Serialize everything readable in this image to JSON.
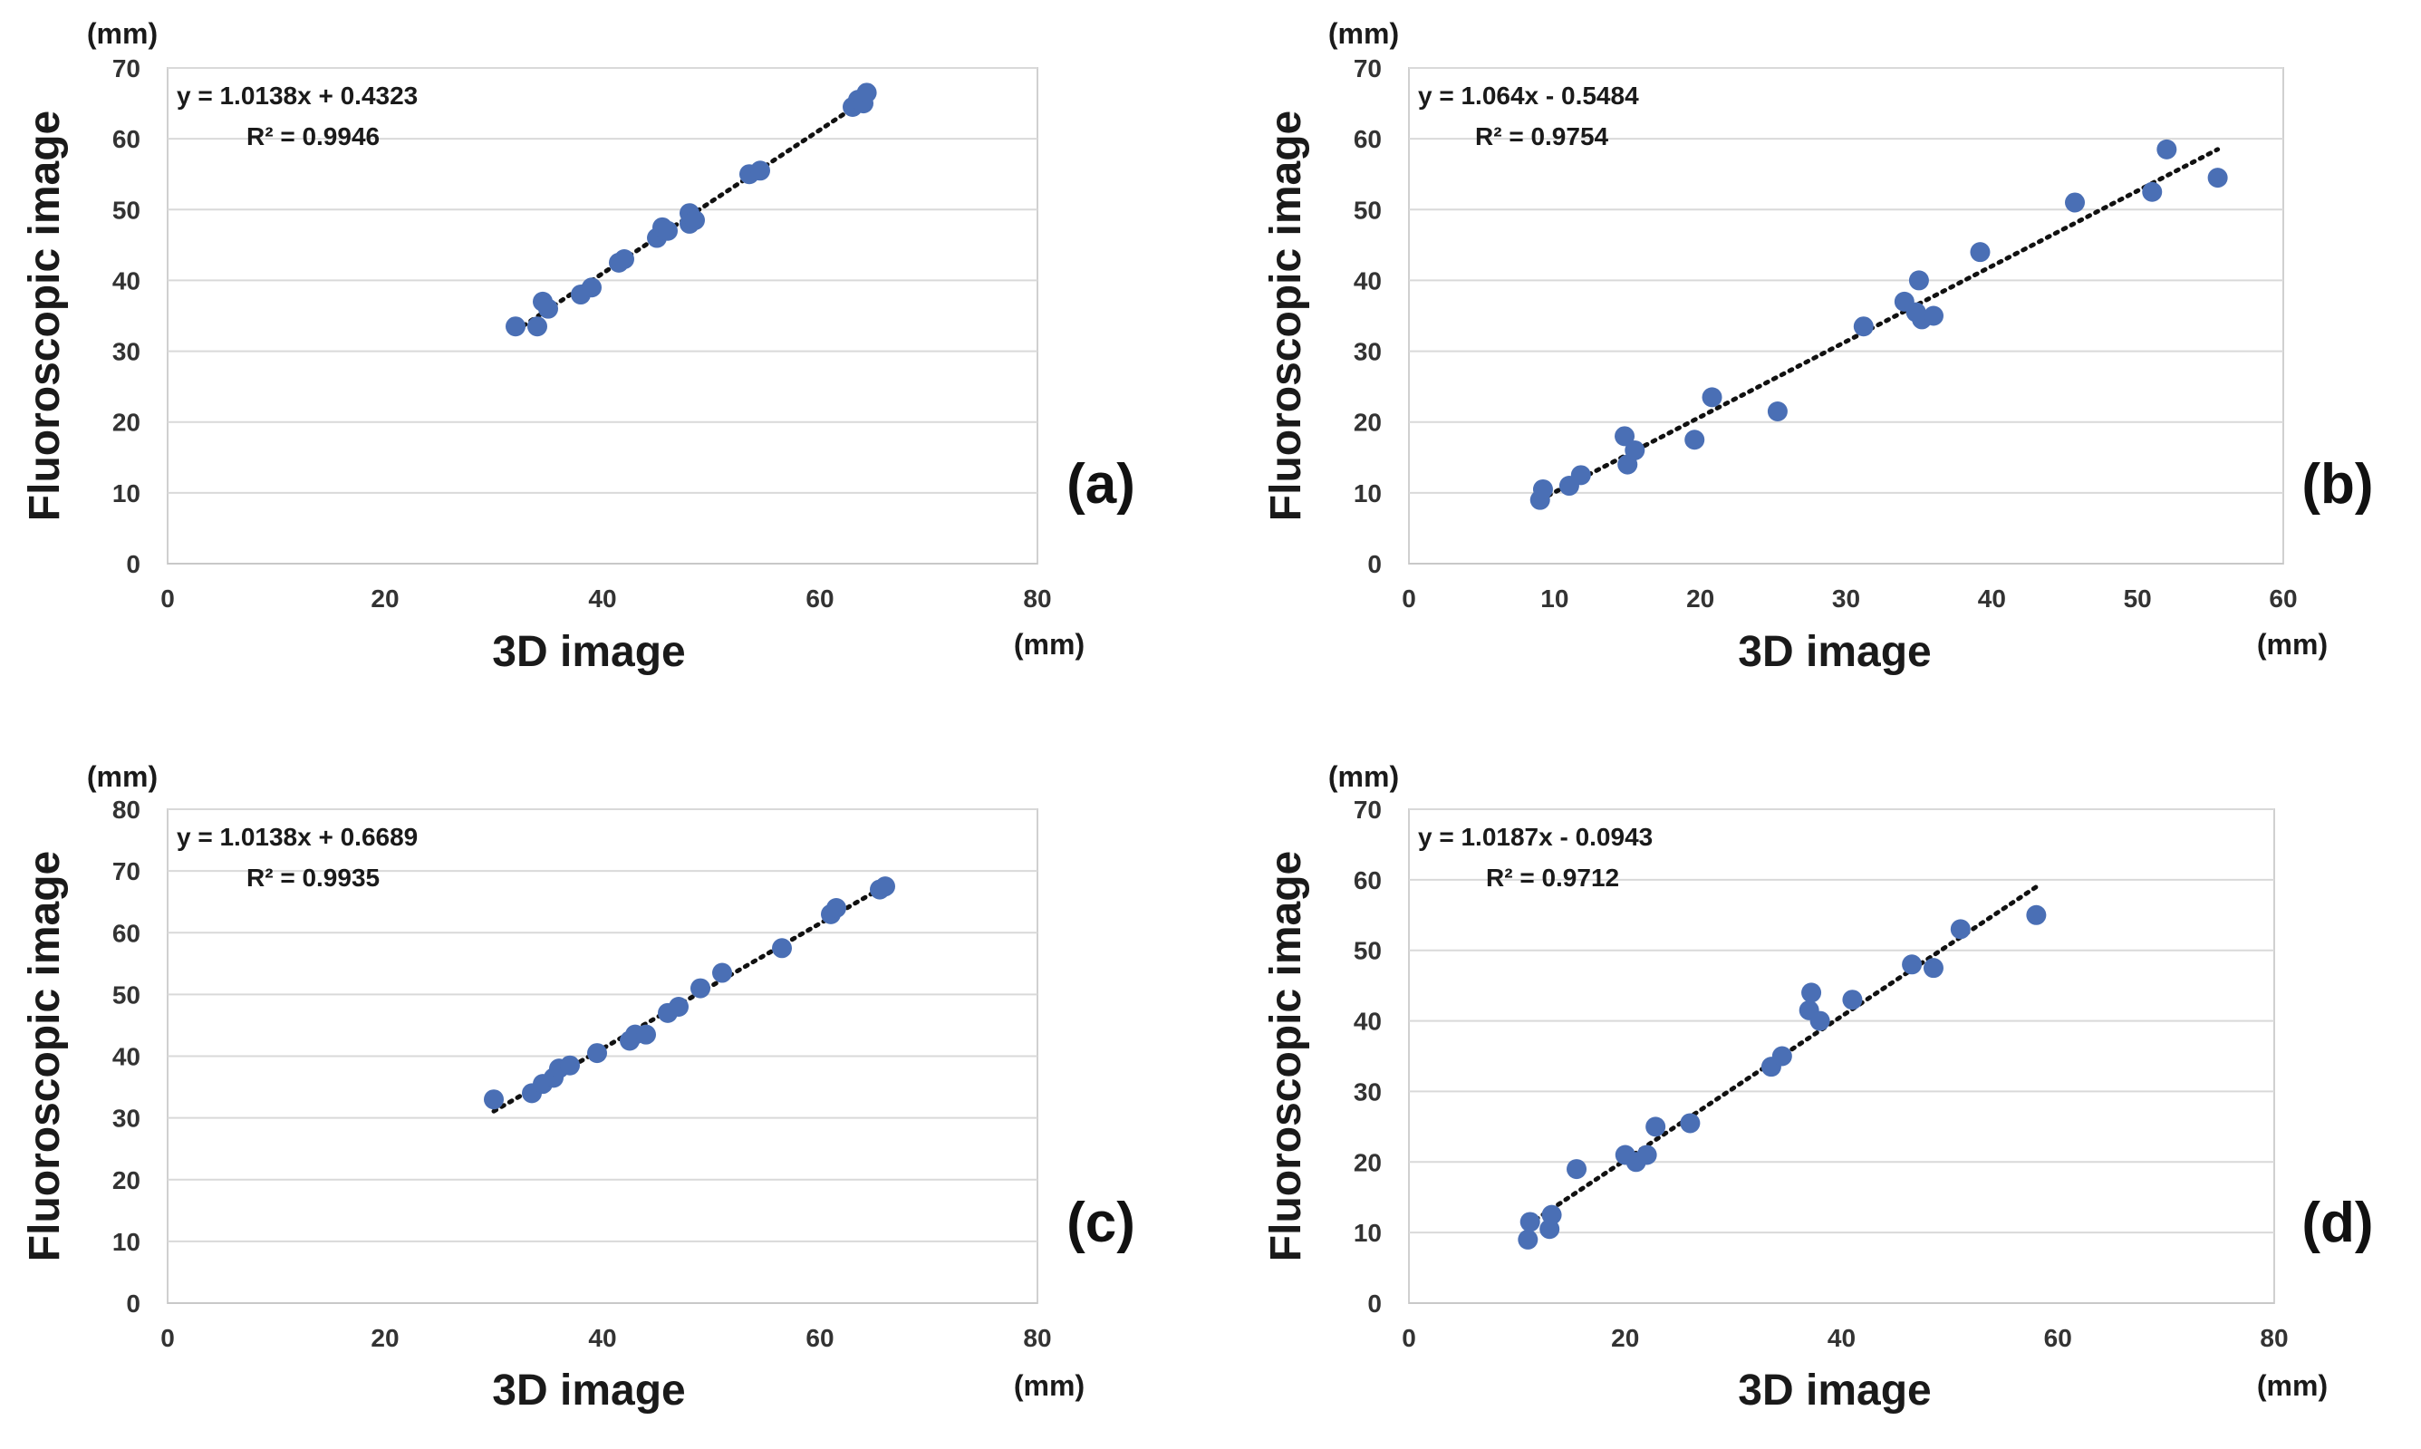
{
  "colors": {
    "point": "#4a6fb5",
    "trend": "#111111",
    "grid": "#d9d9d9",
    "frame": "#d0d0d0"
  },
  "chart_data": [
    {
      "type": "scatter",
      "panel_label": "(a)",
      "xlabel": "3D image",
      "ylabel": "Fluoroscopic image",
      "x_unit": "(mm)",
      "y_unit": "(mm)",
      "xlim": [
        0,
        80
      ],
      "ylim": [
        0,
        70
      ],
      "xticks": [
        "0",
        "20",
        "40",
        "60",
        "80"
      ],
      "yticks": [
        "0",
        "10",
        "20",
        "30",
        "40",
        "50",
        "60",
        "70"
      ],
      "grid": "horizontal",
      "equation": "y = 1.0138x + 0.4323",
      "r_squared": "R² = 0.9946",
      "trend": {
        "slope": 1.0138,
        "intercept": 0.4323,
        "x_range": [
          32,
          64.5
        ]
      },
      "series": [
        {
          "x": [
            32,
            34,
            34.5,
            35,
            38,
            39,
            41.5,
            42,
            45,
            45.5,
            46,
            48,
            48,
            48.5,
            53.5,
            54.5,
            63,
            63.5,
            64,
            64.3
          ],
          "y": [
            33.5,
            33.5,
            37,
            36,
            38,
            39,
            42.5,
            43,
            46,
            47.5,
            47,
            48,
            49.5,
            48.5,
            55,
            55.5,
            64.5,
            65.5,
            65,
            66.5
          ]
        }
      ]
    },
    {
      "type": "scatter",
      "panel_label": "(b)",
      "xlabel": "3D image",
      "ylabel": "Fluoroscopic image",
      "x_unit": "(mm)",
      "y_unit": "(mm)",
      "xlim": [
        0,
        60
      ],
      "ylim": [
        0,
        70
      ],
      "xticks": [
        "0",
        "10",
        "20",
        "30",
        "40",
        "50",
        "60"
      ],
      "yticks": [
        "0",
        "10",
        "20",
        "30",
        "40",
        "50",
        "60",
        "70"
      ],
      "grid": "horizontal",
      "equation": "y = 1.064x - 0.5484",
      "r_squared": "R² = 0.9754",
      "trend": {
        "slope": 1.064,
        "intercept": -0.5484,
        "x_range": [
          9,
          55.5
        ]
      },
      "series": [
        {
          "x": [
            9,
            9.2,
            11,
            11.8,
            14.8,
            15,
            15.5,
            19.6,
            20.8,
            25.3,
            31.2,
            34,
            34.8,
            35,
            35.2,
            36,
            39.2,
            45.7,
            51,
            52,
            55.5
          ],
          "y": [
            9,
            10.5,
            11,
            12.5,
            18,
            14,
            16,
            17.5,
            23.5,
            21.5,
            33.5,
            37,
            35.5,
            40,
            34.5,
            35,
            44,
            51,
            52.5,
            58.5,
            54.5
          ]
        }
      ]
    },
    {
      "type": "scatter",
      "panel_label": "(c)",
      "xlabel": "3D image",
      "ylabel": "Fluoroscopic image",
      "x_unit": "(mm)",
      "y_unit": "(mm)",
      "xlim": [
        0,
        80
      ],
      "ylim": [
        0,
        80
      ],
      "xticks": [
        "0",
        "20",
        "40",
        "60",
        "80"
      ],
      "yticks": [
        "0",
        "10",
        "20",
        "30",
        "40",
        "50",
        "60",
        "70",
        "80"
      ],
      "grid": "horizontal",
      "equation": "y = 1.0138x + 0.6689",
      "r_squared": "R² = 0.9935",
      "trend": {
        "slope": 1.0138,
        "intercept": 0.6689,
        "x_range": [
          30,
          66
        ]
      },
      "series": [
        {
          "x": [
            30,
            33.5,
            34.5,
            35.5,
            36,
            37,
            39.5,
            42.5,
            43,
            44,
            46,
            47,
            49,
            51,
            56.5,
            61,
            61.5,
            65.5,
            66
          ],
          "y": [
            33,
            34,
            35.5,
            36.5,
            38,
            38.5,
            40.5,
            42.5,
            43.5,
            43.5,
            47,
            48,
            51,
            53.5,
            57.5,
            63,
            64,
            67,
            67.5
          ]
        }
      ]
    },
    {
      "type": "scatter",
      "panel_label": "(d)",
      "xlabel": "3D image",
      "ylabel": "Fluoroscopic image",
      "x_unit": "(mm)",
      "y_unit": "(mm)",
      "xlim": [
        0,
        80
      ],
      "ylim": [
        0,
        70
      ],
      "xticks": [
        "0",
        "20",
        "40",
        "60",
        "80"
      ],
      "yticks": [
        "0",
        "10",
        "20",
        "30",
        "40",
        "50",
        "60",
        "70"
      ],
      "grid": "horizontal",
      "equation": "y = 1.0187x - 0.0943",
      "r_squared": "R² = 0.9712",
      "trend": {
        "slope": 1.0187,
        "intercept": -0.0943,
        "x_range": [
          11,
          58
        ]
      },
      "series": [
        {
          "x": [
            11,
            11.2,
            13,
            13.2,
            15.5,
            20,
            21,
            22,
            22.8,
            26,
            33.5,
            34.5,
            37,
            37.2,
            38,
            41,
            46.5,
            48.5,
            51,
            58
          ],
          "y": [
            9,
            11.5,
            10.5,
            12.5,
            19,
            21,
            20,
            21,
            25,
            25.5,
            33.5,
            35,
            41.5,
            44,
            40,
            43,
            48,
            47.5,
            53,
            55
          ]
        }
      ]
    }
  ]
}
